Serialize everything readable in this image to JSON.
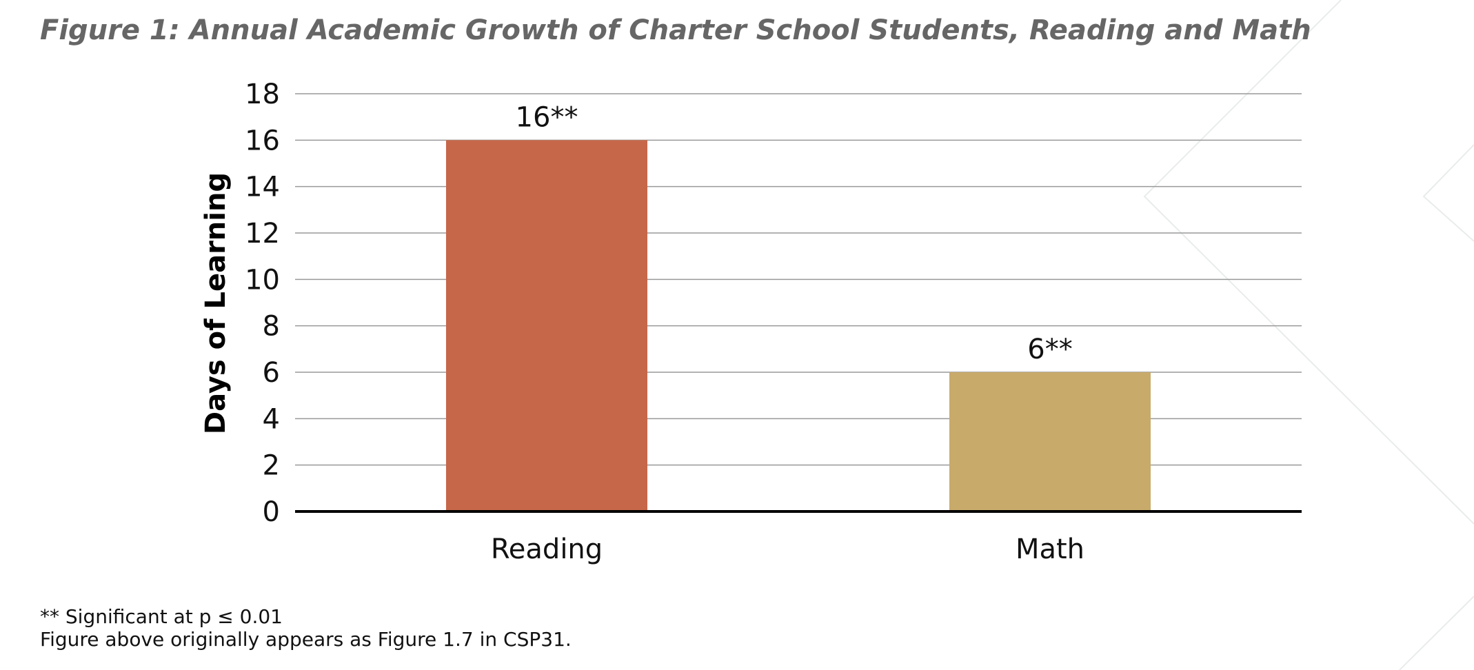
{
  "figure": {
    "title": "Figure 1: Annual Academic Growth of Charter School Students, Reading and Math"
  },
  "chart_data": {
    "type": "bar",
    "categories": [
      "Reading",
      "Math"
    ],
    "values": [
      16,
      6
    ],
    "value_labels": [
      "16**",
      "6**"
    ],
    "bar_colors": [
      "#C6674A",
      "#C8AA6A"
    ],
    "title": "",
    "xlabel": "",
    "ylabel": "Days of Learning",
    "ylim": [
      0,
      18
    ],
    "yticks": [
      0,
      2,
      4,
      6,
      8,
      10,
      12,
      14,
      16,
      18
    ],
    "grid": true,
    "legend": "none"
  },
  "footnotes": {
    "significance": "** Significant at p ≤ 0.01",
    "source": "Figure above originally appears as Figure 1.7 in CSP31."
  },
  "colors": {
    "title": "#666666",
    "gridline": "#999999",
    "axis": "#000000",
    "text": "#111111",
    "decoration": "#E8ECEA"
  }
}
